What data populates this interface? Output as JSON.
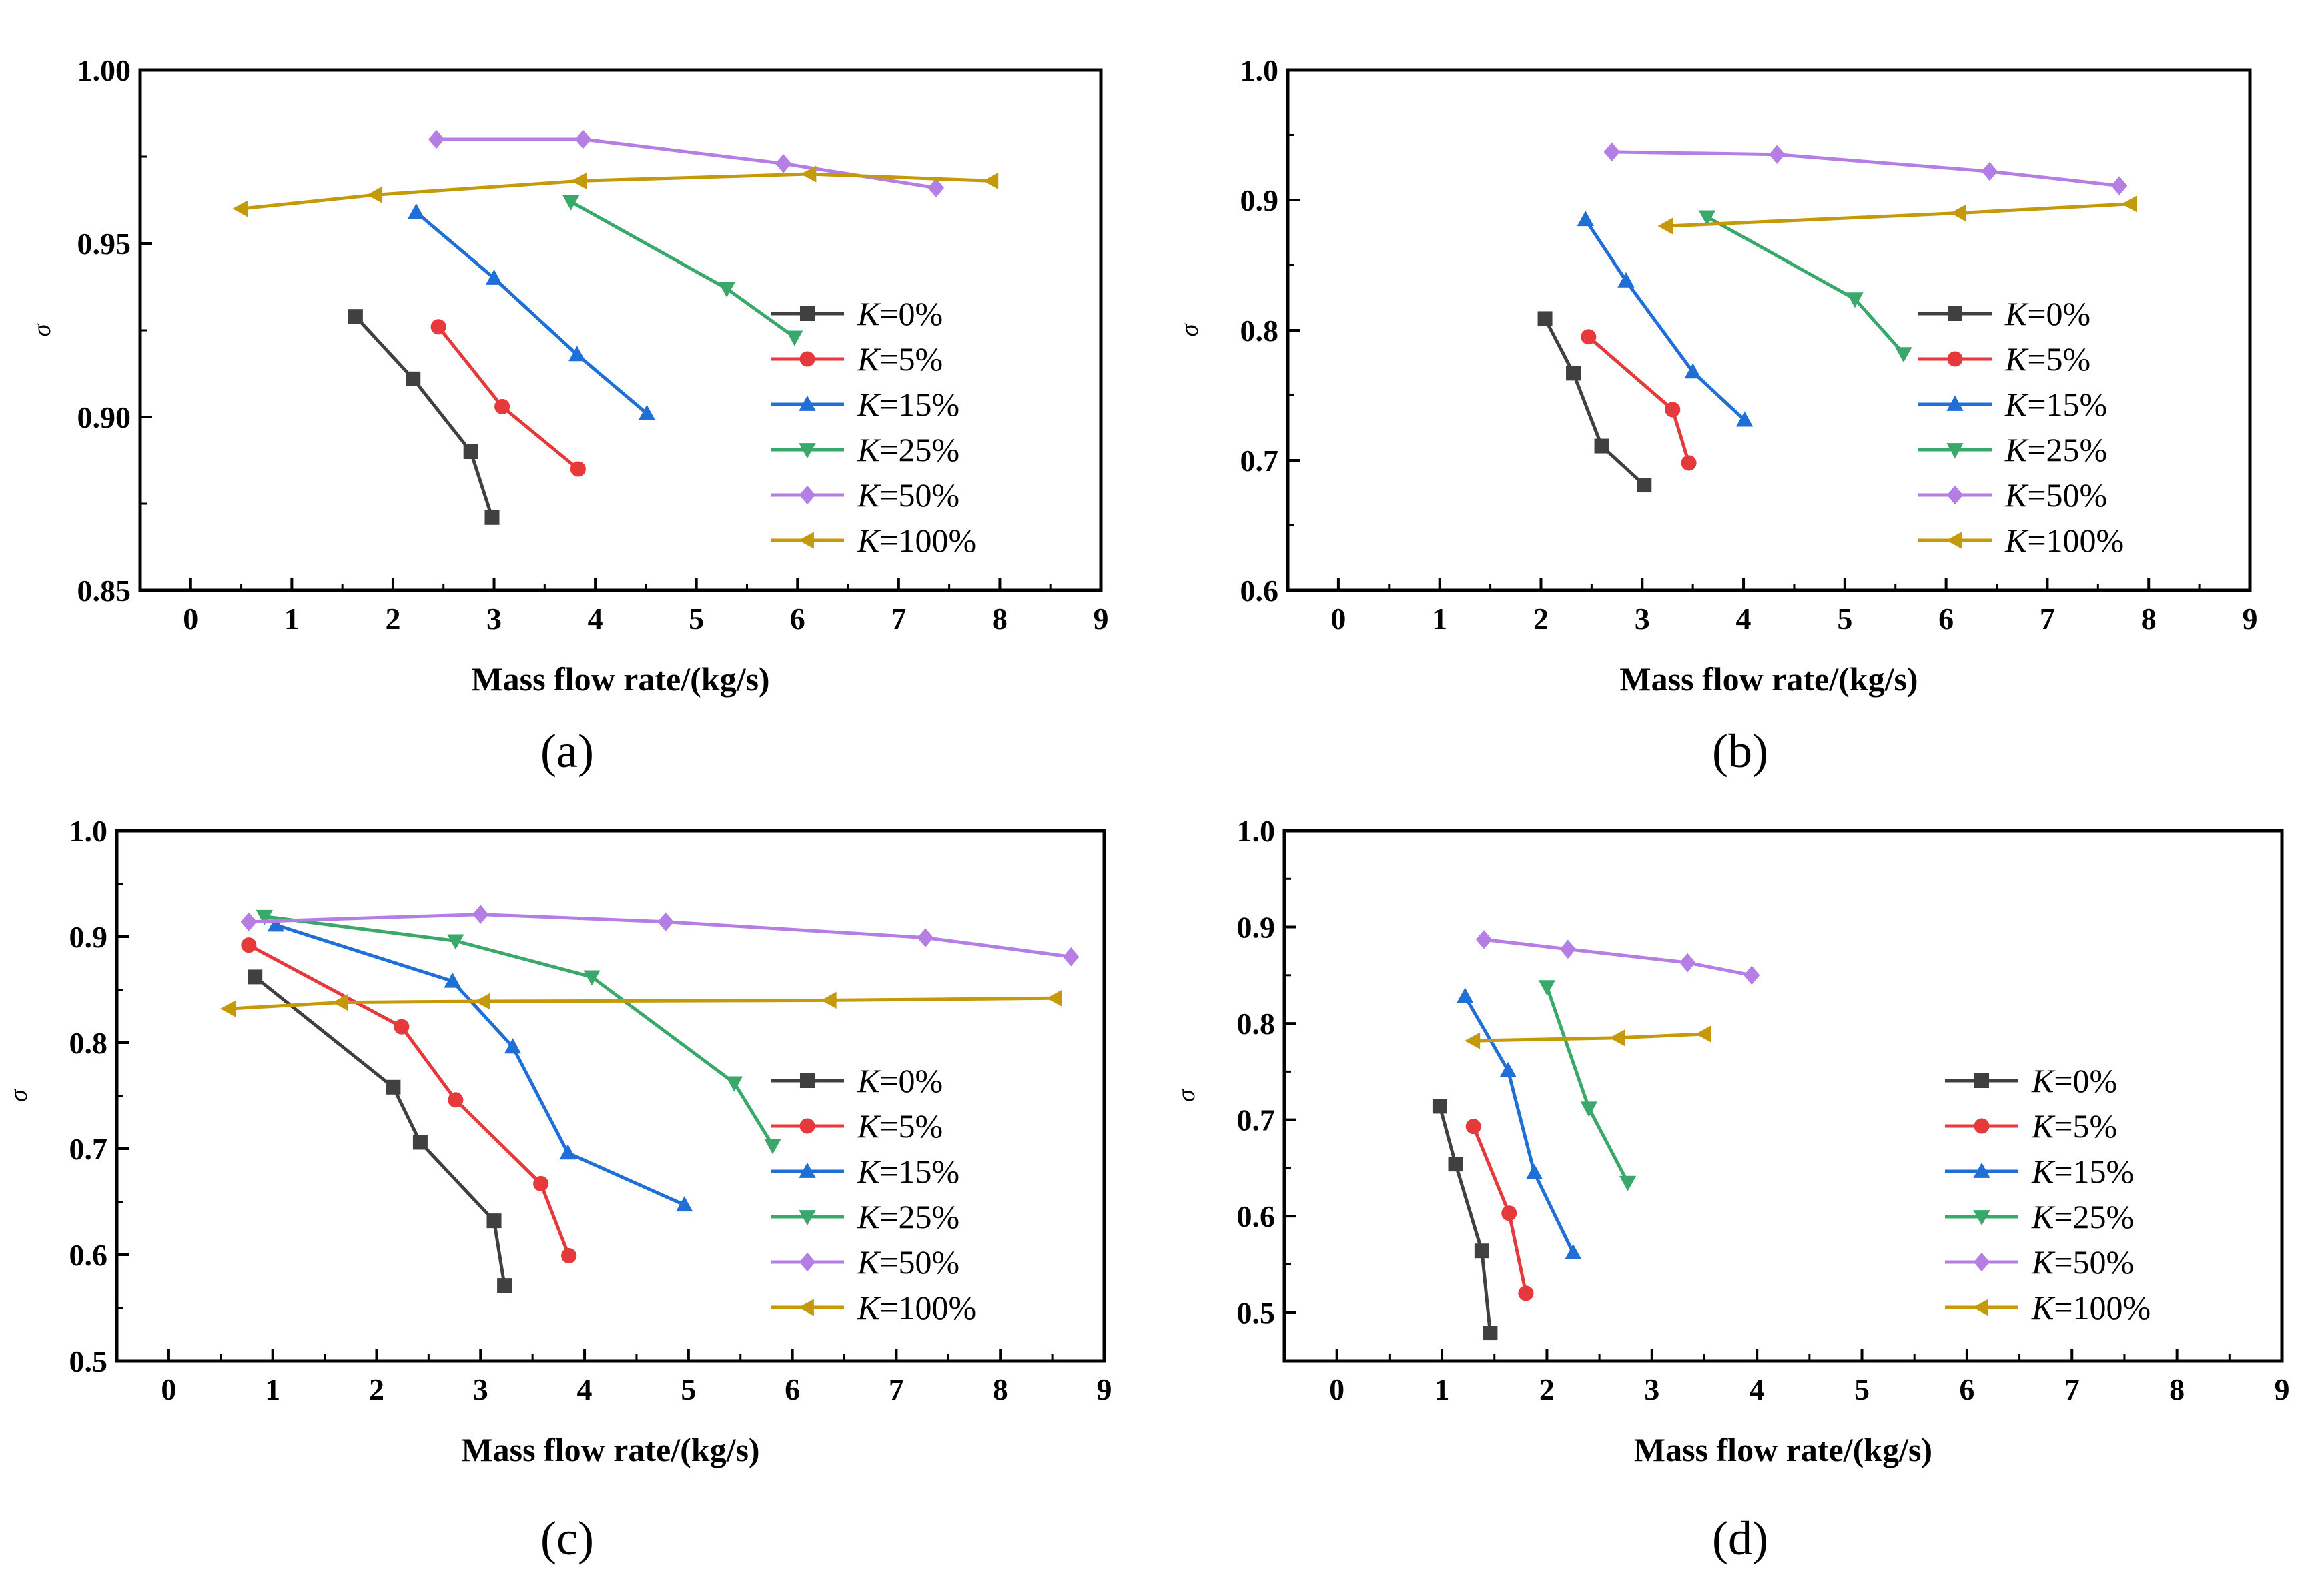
{
  "chart_data": [
    {
      "type": "line",
      "caption": "(a)",
      "xlabel": "Mass flow rate/(kg/s)",
      "ylabel": "σ",
      "xlim": [
        -0.5,
        9
      ],
      "ylim": [
        0.85,
        1.0
      ],
      "xticks": [
        "0",
        "1",
        "2",
        "3",
        "4",
        "5",
        "6",
        "7",
        "8",
        "9"
      ],
      "yticks": [
        "0.85",
        "0.90",
        "0.95",
        "1.00"
      ],
      "grid": false,
      "legend": "right",
      "series": [
        {
          "name": "K=0%",
          "prefix": "K",
          "suffix": "=0%",
          "color": "#404040",
          "marker": "square",
          "x": [
            1.63,
            2.2,
            2.77,
            2.98
          ],
          "y": [
            0.929,
            0.911,
            0.89,
            0.871
          ]
        },
        {
          "name": "K=5%",
          "prefix": "K",
          "suffix": "=5%",
          "color": "#e5393b",
          "marker": "circle",
          "x": [
            2.45,
            3.08,
            3.83
          ],
          "y": [
            0.926,
            0.903,
            0.885
          ]
        },
        {
          "name": "K=15%",
          "prefix": "K",
          "suffix": "=15%",
          "color": "#1f6fd6",
          "marker": "triangle-up",
          "x": [
            2.23,
            3.0,
            3.82,
            4.51
          ],
          "y": [
            0.959,
            0.94,
            0.918,
            0.901
          ]
        },
        {
          "name": "K=25%",
          "prefix": "K",
          "suffix": "=25%",
          "color": "#3aa86b",
          "marker": "triangle-down",
          "x": [
            3.76,
            5.3,
            5.97
          ],
          "y": [
            0.962,
            0.937,
            0.923
          ]
        },
        {
          "name": "K=50%",
          "prefix": "K",
          "suffix": "=50%",
          "color": "#b57ee4",
          "marker": "diamond",
          "x": [
            2.43,
            3.88,
            5.86,
            7.37
          ],
          "y": [
            0.98,
            0.98,
            0.973,
            0.966
          ]
        },
        {
          "name": "K=100%",
          "prefix": "K",
          "suffix": "=100%",
          "color": "#c49a0a",
          "marker": "triangle-left",
          "x": [
            0.5,
            1.83,
            3.85,
            6.12,
            7.92
          ],
          "y": [
            0.96,
            0.964,
            0.968,
            0.97,
            0.968
          ]
        }
      ]
    },
    {
      "type": "line",
      "caption": "(b)",
      "xlabel": "Mass flow rate/(kg/s)",
      "ylabel": "σ",
      "xlim": [
        -0.5,
        9
      ],
      "ylim": [
        0.6,
        1.0
      ],
      "xticks": [
        "0",
        "1",
        "2",
        "3",
        "4",
        "5",
        "6",
        "7",
        "8",
        "9"
      ],
      "yticks": [
        "0.6",
        "0.7",
        "0.8",
        "0.9",
        "1.0"
      ],
      "grid": false,
      "legend": "right",
      "series": [
        {
          "name": "K=0%",
          "prefix": "K",
          "suffix": "=0%",
          "color": "#404040",
          "marker": "square",
          "x": [
            2.04,
            2.32,
            2.6,
            3.02
          ],
          "y": [
            0.809,
            0.767,
            0.711,
            0.681
          ]
        },
        {
          "name": "K=5%",
          "prefix": "K",
          "suffix": "=5%",
          "color": "#e5393b",
          "marker": "circle",
          "x": [
            2.47,
            3.3,
            3.46
          ],
          "y": [
            0.795,
            0.739,
            0.698
          ]
        },
        {
          "name": "K=15%",
          "prefix": "K",
          "suffix": "=15%",
          "color": "#1f6fd6",
          "marker": "triangle-up",
          "x": [
            2.44,
            2.84,
            3.5,
            4.01
          ],
          "y": [
            0.885,
            0.838,
            0.768,
            0.731
          ]
        },
        {
          "name": "K=25%",
          "prefix": "K",
          "suffix": "=25%",
          "color": "#3aa86b",
          "marker": "triangle-down",
          "x": [
            3.64,
            5.1,
            5.58
          ],
          "y": [
            0.887,
            0.824,
            0.782
          ]
        },
        {
          "name": "K=50%",
          "prefix": "K",
          "suffix": "=50%",
          "color": "#b57ee4",
          "marker": "diamond",
          "x": [
            2.7,
            4.33,
            6.43,
            7.71
          ],
          "y": [
            0.937,
            0.935,
            0.922,
            0.911
          ]
        },
        {
          "name": "K=100%",
          "prefix": "K",
          "suffix": "=100%",
          "color": "#c49a0a",
          "marker": "triangle-left",
          "x": [
            3.24,
            6.13,
            7.82
          ],
          "y": [
            0.88,
            0.89,
            0.897
          ]
        }
      ]
    },
    {
      "type": "line",
      "caption": "(c)",
      "xlabel": "Mass flow rate/(kg/s)",
      "ylabel": "σ",
      "xlim": [
        -0.5,
        9
      ],
      "ylim": [
        0.5,
        1.0
      ],
      "xticks": [
        "0",
        "1",
        "2",
        "3",
        "4",
        "5",
        "6",
        "7",
        "8",
        "9"
      ],
      "yticks": [
        "0.5",
        "0.6",
        "0.7",
        "0.8",
        "0.9",
        "1.0"
      ],
      "grid": false,
      "legend": "right",
      "series": [
        {
          "name": "K=0%",
          "prefix": "K",
          "suffix": "=0%",
          "color": "#404040",
          "marker": "square",
          "x": [
            0.83,
            2.16,
            2.42,
            3.13,
            3.23
          ],
          "y": [
            0.862,
            0.758,
            0.706,
            0.632,
            0.571
          ]
        },
        {
          "name": "K=5%",
          "prefix": "K",
          "suffix": "=5%",
          "color": "#e5393b",
          "marker": "circle",
          "x": [
            0.77,
            2.24,
            2.76,
            3.58,
            3.85
          ],
          "y": [
            0.892,
            0.815,
            0.746,
            0.667,
            0.599
          ]
        },
        {
          "name": "K=15%",
          "prefix": "K",
          "suffix": "=15%",
          "color": "#1f6fd6",
          "marker": "triangle-up",
          "x": [
            1.03,
            2.73,
            3.31,
            3.84,
            4.96
          ],
          "y": [
            0.911,
            0.858,
            0.796,
            0.696,
            0.647
          ]
        },
        {
          "name": "K=25%",
          "prefix": "K",
          "suffix": "=25%",
          "color": "#3aa86b",
          "marker": "triangle-down",
          "x": [
            0.92,
            2.76,
            4.07,
            5.44,
            5.81
          ],
          "y": [
            0.919,
            0.896,
            0.862,
            0.762,
            0.703
          ]
        },
        {
          "name": "K=50%",
          "prefix": "K",
          "suffix": "=50%",
          "color": "#b57ee4",
          "marker": "diamond",
          "x": [
            0.77,
            3.0,
            4.78,
            7.28,
            8.68
          ],
          "y": [
            0.914,
            0.921,
            0.914,
            0.899,
            0.881
          ]
        },
        {
          "name": "K=100%",
          "prefix": "K",
          "suffix": "=100%",
          "color": "#c49a0a",
          "marker": "triangle-left",
          "x": [
            0.58,
            1.66,
            3.03,
            6.36,
            8.53
          ],
          "y": [
            0.832,
            0.838,
            0.839,
            0.84,
            0.842
          ]
        }
      ]
    },
    {
      "type": "line",
      "caption": "(d)",
      "xlabel": "Mass flow rate/(kg/s)",
      "ylabel": "σ",
      "xlim": [
        -0.5,
        9
      ],
      "ylim": [
        0.45,
        1.0
      ],
      "xticks": [
        "0",
        "1",
        "2",
        "3",
        "4",
        "5",
        "6",
        "7",
        "8",
        "9"
      ],
      "yticks": [
        "0.5",
        "0.6",
        "0.7",
        "0.8",
        "0.9",
        "1.0"
      ],
      "grid": false,
      "legend": "right",
      "series": [
        {
          "name": "K=0%",
          "prefix": "K",
          "suffix": "=0%",
          "color": "#404040",
          "marker": "square",
          "x": [
            0.98,
            1.13,
            1.38,
            1.46
          ],
          "y": [
            0.714,
            0.654,
            0.564,
            0.479
          ]
        },
        {
          "name": "K=5%",
          "prefix": "K",
          "suffix": "=5%",
          "color": "#e5393b",
          "marker": "circle",
          "x": [
            1.3,
            1.64,
            1.8
          ],
          "y": [
            0.693,
            0.603,
            0.52
          ]
        },
        {
          "name": "K=15%",
          "prefix": "K",
          "suffix": "=15%",
          "color": "#1f6fd6",
          "marker": "triangle-up",
          "x": [
            1.22,
            1.63,
            1.88,
            2.25
          ],
          "y": [
            0.828,
            0.751,
            0.645,
            0.562
          ]
        },
        {
          "name": "K=25%",
          "prefix": "K",
          "suffix": "=25%",
          "color": "#3aa86b",
          "marker": "triangle-down",
          "x": [
            2.0,
            2.4,
            2.77
          ],
          "y": [
            0.838,
            0.712,
            0.635
          ]
        },
        {
          "name": "K=50%",
          "prefix": "K",
          "suffix": "=50%",
          "color": "#b57ee4",
          "marker": "diamond",
          "x": [
            1.4,
            2.2,
            3.34,
            3.95
          ],
          "y": [
            0.887,
            0.877,
            0.863,
            0.85
          ]
        },
        {
          "name": "K=100%",
          "prefix": "K",
          "suffix": "=100%",
          "color": "#c49a0a",
          "marker": "triangle-left",
          "x": [
            1.3,
            2.68,
            3.5
          ],
          "y": [
            0.782,
            0.785,
            0.789
          ]
        }
      ]
    }
  ]
}
